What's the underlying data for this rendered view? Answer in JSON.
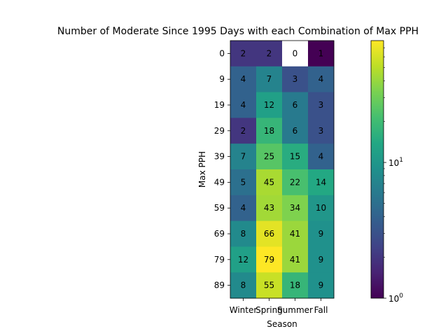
{
  "chart_data": {
    "type": "heatmap",
    "title": "Number of Moderate Since 1995 Days with each Combination of Max PPH",
    "xlabel": "Season",
    "ylabel": "Max PPH",
    "x_categories": [
      "Winter",
      "Spring",
      "Summer",
      "Fall"
    ],
    "y_categories": [
      "0",
      "9",
      "19",
      "29",
      "39",
      "49",
      "59",
      "69",
      "79",
      "89"
    ],
    "values": [
      [
        2,
        2,
        0,
        1
      ],
      [
        4,
        7,
        3,
        4
      ],
      [
        4,
        12,
        6,
        3
      ],
      [
        2,
        18,
        6,
        3
      ],
      [
        7,
        25,
        15,
        4
      ],
      [
        5,
        45,
        22,
        14
      ],
      [
        4,
        43,
        34,
        10
      ],
      [
        8,
        66,
        41,
        9
      ],
      [
        12,
        79,
        41,
        9
      ],
      [
        8,
        55,
        18,
        9
      ]
    ],
    "colorscale": "viridis",
    "color_scale_type": "log",
    "color_range": [
      1,
      79
    ],
    "colorbar_ticks": [
      {
        "value": 1,
        "label": "10",
        "exp": "0"
      },
      {
        "value": 10,
        "label": "10",
        "exp": "1"
      }
    ],
    "zero_cell_color": "#ffffff"
  }
}
